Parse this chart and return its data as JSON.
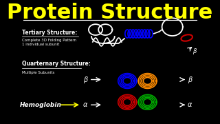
{
  "title": "Protein Structure",
  "title_color": "#FFFF00",
  "title_fontsize": 22,
  "bg_color": "#000000",
  "text_color": "#FFFFFF",
  "tertiary_label": "Tertiary Structure:",
  "tertiary_sub1": "Complete 3D Folding Pattern",
  "tertiary_sub2": "1 individual subunit",
  "quaternary_label": "Quarternary Structure:",
  "quaternary_sub": "Multiple Subunits",
  "hemoglobin_label": "Hemoglobin",
  "beta_label": "β",
  "alpha_label": "α",
  "white": "#FFFFFF",
  "blue": "#0000FF",
  "red": "#CC0000",
  "green": "#00AA00",
  "orange": "#FF8C00",
  "yellow": "#FFFF00"
}
